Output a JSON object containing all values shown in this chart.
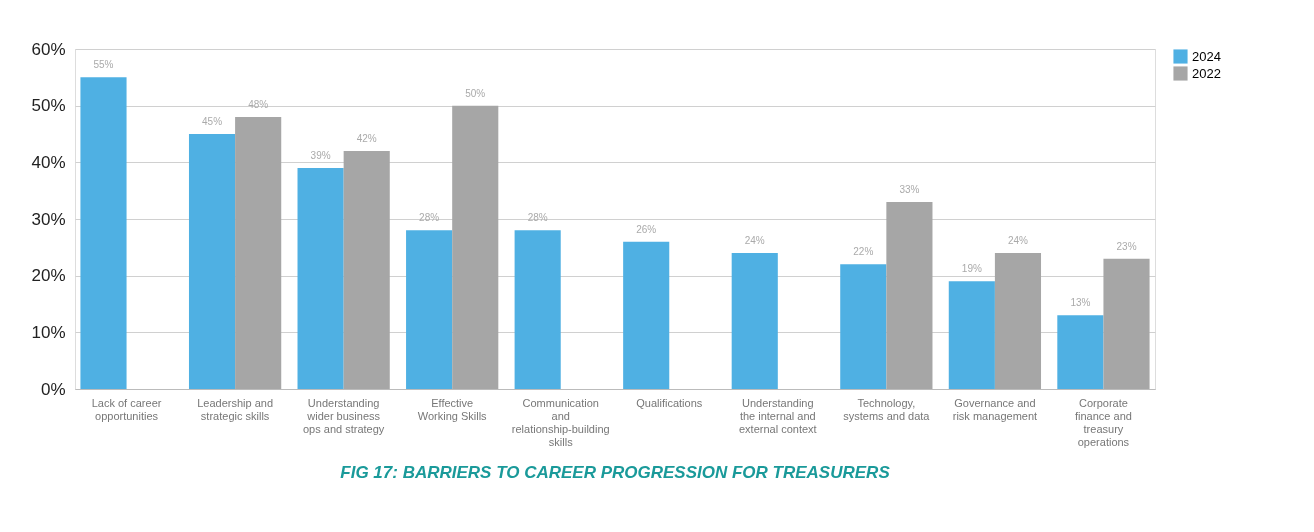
{
  "chart_data": {
    "type": "bar",
    "title": "FIG 17: BARRIERS TO CAREER PROGRESSION FOR TREASURERS",
    "categories": [
      "Lack of career opportunities",
      "Leadership and strategic skills",
      "Understanding wider business ops and strategy",
      "Effective Working Skills",
      "Communication and relationship-building skills",
      "Qualifications",
      "Understanding the internal and external context",
      "Technology, systems and data",
      "Governance and risk management",
      "Corporate finance and treasury operations"
    ],
    "series": [
      {
        "name": "2024",
        "color": "#4fb0e3",
        "values": [
          55,
          45,
          39,
          28,
          28,
          26,
          24,
          22,
          19,
          13
        ],
        "value_labels": [
          "55%",
          "45%",
          "39%",
          "28%",
          "28%",
          "26%",
          "24%",
          "22%",
          "19%",
          "13%"
        ]
      },
      {
        "name": "2022",
        "color": "#a6a6a6",
        "values": [
          null,
          48,
          42,
          50,
          null,
          null,
          null,
          33,
          24,
          23
        ],
        "value_labels": [
          null,
          "48%",
          "42%",
          "50%",
          null,
          null,
          null,
          "33%",
          "24%",
          "23%"
        ]
      }
    ],
    "ylim": [
      0,
      60
    ],
    "yticks": [
      {
        "value": 0,
        "label": "0%"
      },
      {
        "value": 10,
        "label": "10%"
      },
      {
        "value": 20,
        "label": "20%"
      },
      {
        "value": 30,
        "label": "30%"
      },
      {
        "value": 40,
        "label": "40%"
      },
      {
        "value": 50,
        "label": "50%"
      },
      {
        "value": 60,
        "label": "60%"
      }
    ],
    "grid": "y",
    "legend": "right"
  }
}
